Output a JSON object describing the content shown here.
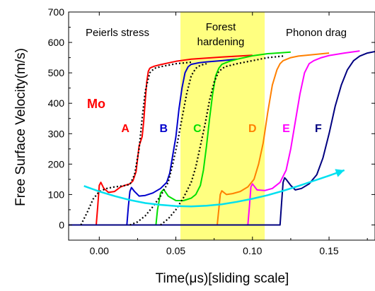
{
  "chart_data": {
    "type": "line",
    "xlabel": "Time(μs)[sliding scale]",
    "ylabel": "Free Surface Velocity(m/s)",
    "xlim": [
      -0.02,
      0.18
    ],
    "ylim": [
      -50,
      700
    ],
    "x_ticks": [
      0.0,
      0.05,
      0.1,
      0.15
    ],
    "x_tick_labels": [
      "0.00",
      "0.05",
      "0.10",
      "0.15"
    ],
    "y_ticks": [
      0,
      100,
      200,
      300,
      400,
      500,
      600,
      700
    ],
    "y_tick_labels": [
      "0",
      "100",
      "200",
      "300",
      "400",
      "500",
      "600",
      "700"
    ],
    "grid": false,
    "highlight_band": {
      "x": [
        0.053,
        0.108
      ],
      "color": "#ffff80"
    },
    "region_labels": {
      "peierls": "Peierls stress",
      "forest_line1": "Forest",
      "forest_line2": "hardening",
      "phonon": "Phonon drag"
    },
    "material_label": {
      "text": "Mo",
      "color": "#ff0000"
    },
    "series": [
      {
        "name": "A",
        "color": "#ff0000",
        "style": "solid",
        "label_point": [
          0.017,
          305
        ],
        "x": [
          -0.02,
          -0.002,
          -0.001,
          0.0,
          0.001,
          0.003,
          0.006,
          0.01,
          0.014,
          0.018,
          0.02,
          0.022,
          0.024,
          0.026,
          0.028,
          0.029,
          0.03,
          0.031,
          0.032,
          0.033,
          0.034,
          0.036,
          0.04,
          0.05,
          0.06,
          0.08,
          0.1
        ],
        "y": [
          0,
          0,
          60,
          130,
          140,
          120,
          107,
          110,
          125,
          132,
          135,
          145,
          175,
          260,
          290,
          340,
          410,
          470,
          505,
          515,
          518,
          522,
          527,
          538,
          545,
          552,
          558
        ]
      },
      {
        "name": "B",
        "color": "#0000cc",
        "style": "solid",
        "label_point": [
          0.042,
          305
        ],
        "x": [
          -0.02,
          0.018,
          0.019,
          0.02,
          0.021,
          0.023,
          0.026,
          0.03,
          0.035,
          0.04,
          0.044,
          0.046,
          0.048,
          0.05,
          0.052,
          0.054,
          0.056,
          0.058,
          0.06,
          0.065,
          0.07,
          0.08,
          0.09
        ],
        "y": [
          0,
          0,
          60,
          110,
          123,
          110,
          95,
          97,
          105,
          120,
          140,
          170,
          230,
          290,
          380,
          450,
          500,
          520,
          528,
          533,
          536,
          540,
          545
        ]
      },
      {
        "name": "C",
        "color": "#00e000",
        "style": "solid",
        "label_point": [
          0.064,
          305
        ],
        "x": [
          -0.02,
          0.037,
          0.038,
          0.04,
          0.042,
          0.045,
          0.05,
          0.055,
          0.06,
          0.063,
          0.066,
          0.068,
          0.07,
          0.072,
          0.074,
          0.076,
          0.078,
          0.08,
          0.085,
          0.09,
          0.1,
          0.11,
          0.125
        ],
        "y": [
          0,
          0,
          50,
          105,
          117,
          95,
          80,
          80,
          88,
          100,
          130,
          180,
          260,
          350,
          430,
          490,
          515,
          528,
          538,
          545,
          556,
          563,
          568
        ]
      },
      {
        "name": "D",
        "color": "#ff8000",
        "style": "solid",
        "label_point": [
          0.1,
          305
        ],
        "x": [
          -0.02,
          0.077,
          0.078,
          0.079,
          0.08,
          0.083,
          0.087,
          0.092,
          0.097,
          0.101,
          0.104,
          0.107,
          0.11,
          0.113,
          0.116,
          0.118,
          0.12,
          0.125,
          0.13,
          0.14,
          0.15
        ],
        "y": [
          0,
          0,
          50,
          100,
          112,
          100,
          103,
          110,
          125,
          150,
          200,
          270,
          370,
          460,
          510,
          530,
          540,
          550,
          555,
          560,
          565
        ]
      },
      {
        "name": "E",
        "color": "#ff00ff",
        "style": "solid",
        "label_point": [
          0.122,
          305
        ],
        "x": [
          -0.02,
          0.097,
          0.098,
          0.099,
          0.1,
          0.103,
          0.108,
          0.113,
          0.118,
          0.122,
          0.125,
          0.128,
          0.131,
          0.134,
          0.137,
          0.14,
          0.145,
          0.15,
          0.16,
          0.17
        ],
        "y": [
          0,
          0,
          60,
          125,
          135,
          115,
          113,
          120,
          140,
          180,
          250,
          340,
          430,
          500,
          530,
          540,
          550,
          557,
          565,
          572
        ]
      },
      {
        "name": "F",
        "color": "#000080",
        "style": "solid",
        "label_point": [
          0.143,
          305
        ],
        "x": [
          -0.02,
          0.118,
          0.119,
          0.12,
          0.121,
          0.122,
          0.125,
          0.128,
          0.132,
          0.137,
          0.142,
          0.146,
          0.15,
          0.154,
          0.158,
          0.162,
          0.166,
          0.17,
          0.175,
          0.18
        ],
        "y": [
          0,
          0,
          70,
          140,
          155,
          150,
          130,
          115,
          120,
          135,
          165,
          220,
          300,
          390,
          460,
          510,
          540,
          555,
          565,
          570
        ]
      },
      {
        "name": "",
        "color": "#000000",
        "style": "dotted",
        "x": [
          -0.012,
          -0.008,
          -0.004,
          0.0,
          0.005,
          0.01,
          0.015,
          0.02,
          0.023,
          0.026,
          0.028,
          0.03,
          0.033,
          0.036,
          0.04,
          0.05,
          0.06
        ],
        "y": [
          0,
          40,
          85,
          110,
          120,
          125,
          128,
          133,
          165,
          250,
          350,
          440,
          500,
          515,
          520,
          530,
          535
        ]
      },
      {
        "name": "",
        "color": "#000000",
        "style": "dotted",
        "x": [
          0.02,
          0.025,
          0.03,
          0.035,
          0.04,
          0.045,
          0.048,
          0.051,
          0.054,
          0.057,
          0.06,
          0.063,
          0.066,
          0.07
        ],
        "y": [
          0,
          10,
          30,
          60,
          95,
          140,
          200,
          270,
          350,
          430,
          490,
          515,
          525,
          530
        ]
      },
      {
        "name": "",
        "color": "#000000",
        "style": "dotted",
        "x": [
          0.04,
          0.045,
          0.05,
          0.055,
          0.06,
          0.063,
          0.066,
          0.069,
          0.072,
          0.075,
          0.078,
          0.082,
          0.09,
          0.1,
          0.11,
          0.12
        ],
        "y": [
          0,
          20,
          50,
          90,
          140,
          190,
          260,
          330,
          410,
          470,
          505,
          520,
          530,
          540,
          550,
          555
        ]
      }
    ],
    "arrow": {
      "color": "#00e0f0",
      "x": [
        -0.01,
        0.0,
        0.01,
        0.02,
        0.03,
        0.04,
        0.05,
        0.06,
        0.07,
        0.08,
        0.09,
        0.1,
        0.11,
        0.12,
        0.13,
        0.14,
        0.15,
        0.16
      ],
      "y": [
        128,
        110,
        95,
        82,
        72,
        66,
        62,
        61,
        63,
        68,
        76,
        86,
        98,
        112,
        128,
        145,
        162,
        180
      ]
    }
  }
}
